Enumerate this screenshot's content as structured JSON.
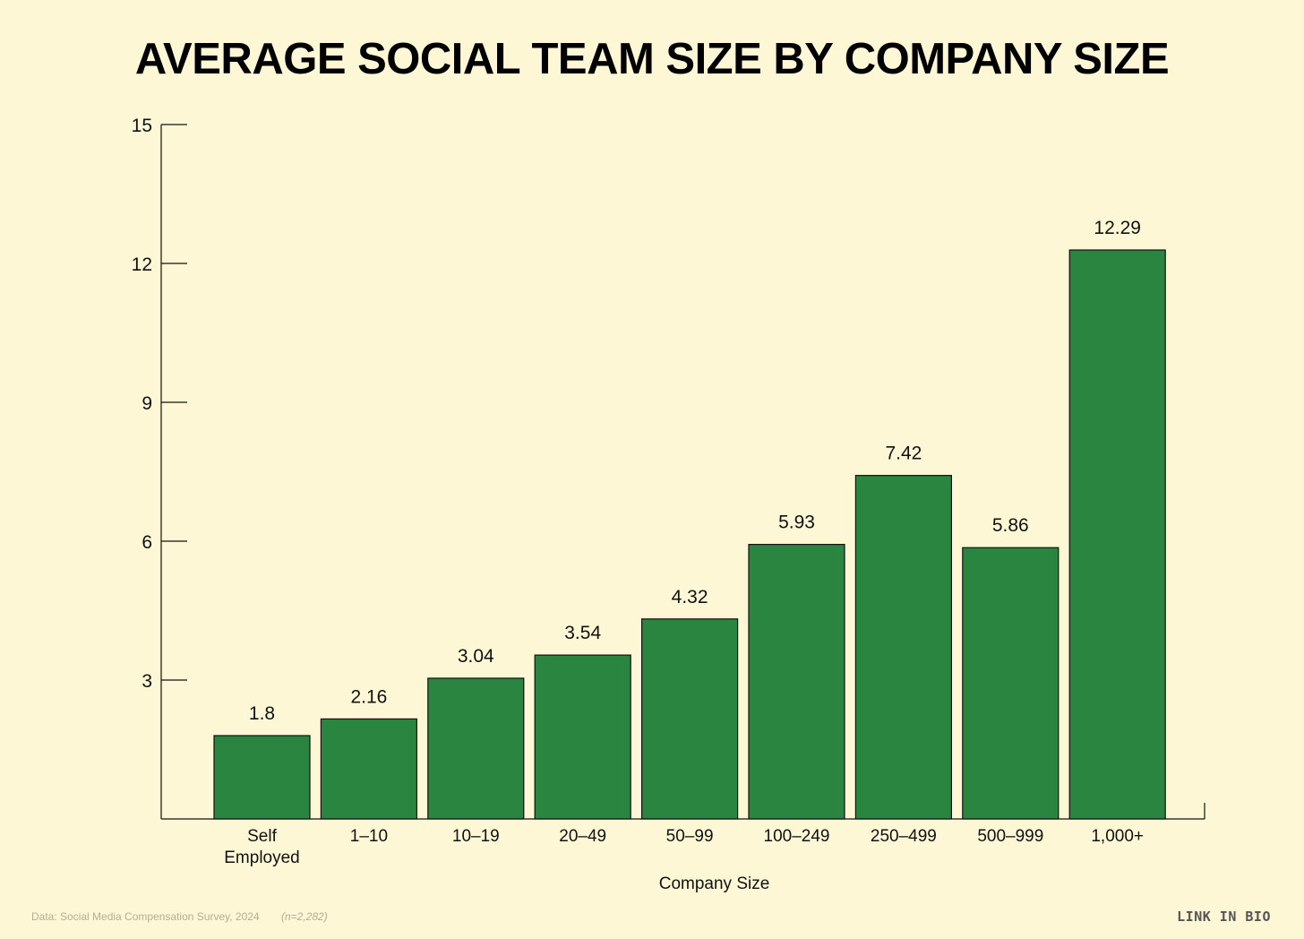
{
  "chart_data": {
    "type": "bar",
    "title": "AVERAGE SOCIAL TEAM SIZE BY COMPANY SIZE",
    "xlabel": "Company Size",
    "ylabel": "",
    "ylim": [
      0,
      15
    ],
    "yticks": [
      "3",
      "6",
      "9",
      "12",
      "15"
    ],
    "categories": [
      [
        "Self",
        "Employed"
      ],
      [
        "1–10"
      ],
      [
        "10–19"
      ],
      [
        "20–49"
      ],
      [
        "50–99"
      ],
      [
        "100–249"
      ],
      [
        "250–499"
      ],
      [
        "500–999"
      ],
      [
        "1,000+"
      ]
    ],
    "values": [
      1.8,
      2.16,
      3.04,
      3.54,
      4.32,
      5.93,
      7.42,
      5.86,
      12.29
    ],
    "value_labels": [
      "1.8",
      "2.16",
      "3.04",
      "3.54",
      "4.32",
      "5.93",
      "7.42",
      "5.86",
      "12.29"
    ],
    "grid": false,
    "legend": "none",
    "bar_color": "#2a8541",
    "bar_border_color": "#111111"
  },
  "footer": {
    "source": "Data: Social Media Compensation Survey, 2024",
    "sample": "(n=2,282)",
    "brand": "LINK IN BIO"
  }
}
